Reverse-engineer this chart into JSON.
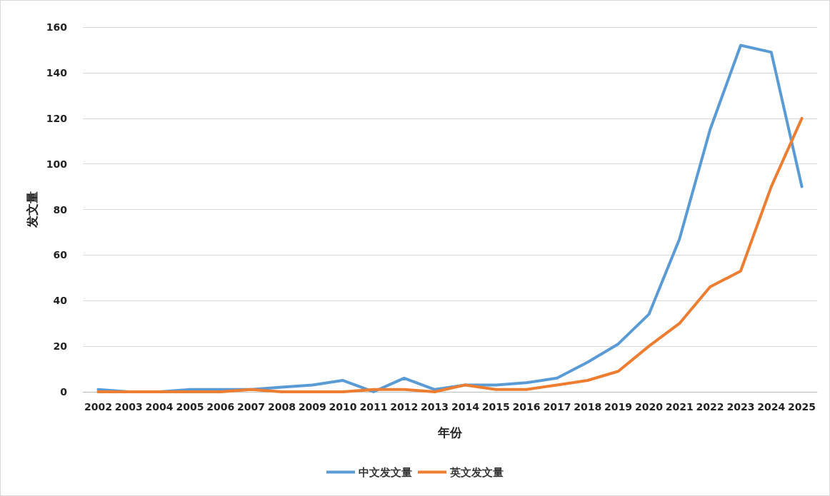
{
  "chart_data": {
    "type": "line",
    "xlabel": "年份",
    "ylabel": "发文量",
    "categories": [
      "2002",
      "2003",
      "2004",
      "2005",
      "2006",
      "2007",
      "2008",
      "2009",
      "2010",
      "2011",
      "2012",
      "2013",
      "2014",
      "2015",
      "2016",
      "2017",
      "2018",
      "2019",
      "2020",
      "2021",
      "2022",
      "2023",
      "2024",
      "2025"
    ],
    "series": [
      {
        "name": "中文发文量",
        "color": "#5b9bd5",
        "values": [
          1,
          0,
          0,
          1,
          1,
          1,
          2,
          3,
          5,
          0,
          6,
          1,
          3,
          3,
          4,
          6,
          13,
          21,
          34,
          67,
          115,
          152,
          149,
          90
        ]
      },
      {
        "name": "英文发文量",
        "color": "#ed7d31",
        "values": [
          0,
          0,
          0,
          0,
          0,
          1,
          0,
          0,
          0,
          1,
          1,
          0,
          3,
          1,
          1,
          3,
          5,
          9,
          20,
          30,
          46,
          53,
          90,
          120
        ]
      }
    ],
    "ylim": [
      0,
      160
    ],
    "yticks": [
      0,
      20,
      40,
      60,
      80,
      100,
      120,
      140,
      160
    ],
    "grid": "y",
    "legend": "bottom",
    "marker": "none",
    "line_style": "solid"
  }
}
